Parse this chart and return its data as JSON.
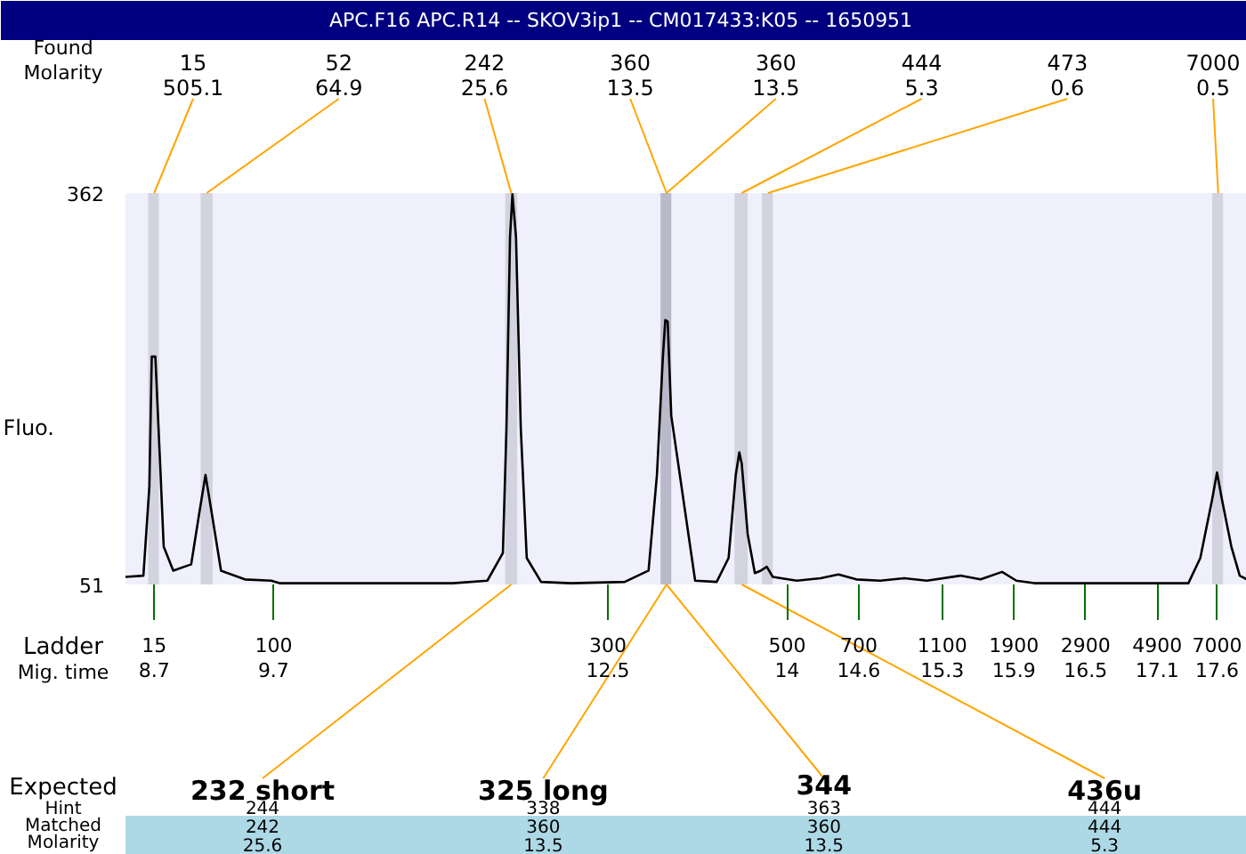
{
  "chart_data": {
    "type": "line",
    "title": "APC.F16  APC.R14 -- SKOV3ip1 -- CM017433:K05 -- 1650951",
    "ylabel": "Fluo.",
    "x": [
      8.46,
      8.61,
      8.66,
      8.68,
      8.71,
      8.75,
      8.78,
      8.86,
      9.01,
      9.08,
      9.13,
      9.18,
      9.26,
      9.46,
      9.68,
      9.75,
      11.2,
      11.49,
      11.62,
      11.65,
      11.68,
      11.7,
      11.73,
      11.77,
      11.82,
      11.94,
      12.19,
      12.64,
      12.84,
      12.91,
      12.96,
      12.98,
      13.0,
      13.03,
      13.23,
      13.41,
      13.51,
      13.57,
      13.6,
      13.62,
      13.67,
      13.73,
      13.78,
      13.83,
      13.88,
      14.08,
      14.28,
      14.43,
      14.58,
      14.78,
      14.98,
      15.17,
      15.45,
      15.62,
      15.8,
      15.92,
      16.07,
      17.36,
      17.46,
      17.56,
      17.6,
      17.64,
      17.72,
      17.79,
      17.85
    ],
    "series": [
      {
        "color": "#000000",
        "values": [
          57,
          58,
          129,
          232,
          232,
          147,
          81,
          62,
          67,
          109,
          138,
          109,
          62,
          55,
          54,
          52,
          52,
          54,
          76,
          175,
          327,
          361,
          327,
          175,
          72,
          53,
          52,
          53,
          62,
          138,
          232,
          261,
          260,
          185,
          54,
          53,
          72,
          138,
          156,
          147,
          91,
          60,
          62,
          65,
          57,
          54,
          56,
          59,
          55,
          54,
          56,
          54,
          58,
          55,
          61,
          54,
          52,
          52,
          72,
          119,
          140,
          119,
          81,
          58,
          55
        ]
      }
    ],
    "xlim": [
      8.46,
      17.85
    ],
    "ylim": [
      51,
      362
    ],
    "yticks": [
      51,
      362
    ],
    "xticks": [
      8.7,
      9.7,
      12.5,
      14,
      14.6,
      15.3,
      15.9,
      16.5,
      17.1,
      17.6
    ],
    "bands": [
      {
        "axis": "x",
        "from": 8.65,
        "to": 8.74,
        "color": "#d3d3df"
      },
      {
        "axis": "x",
        "from": 9.09,
        "to": 9.19,
        "color": "#d3d3df"
      },
      {
        "axis": "x",
        "from": 11.64,
        "to": 11.74,
        "color": "#d3d3df"
      },
      {
        "axis": "x",
        "from": 12.94,
        "to": 13.03,
        "color": "#b9b9c9"
      },
      {
        "axis": "x",
        "from": 13.56,
        "to": 13.67,
        "color": "#d3d3df"
      },
      {
        "axis": "x",
        "from": 13.79,
        "to": 13.88,
        "color": "#d3d3df"
      },
      {
        "axis": "x",
        "from": 17.56,
        "to": 17.65,
        "color": "#d3d3df"
      }
    ],
    "annotations": [
      "Found",
      "Molarity",
      "Ladder",
      "Mig. time",
      "Expected",
      "Hint",
      "Matched",
      "Molarity",
      {
        "text": "15\n505.1",
        "x": 8.7,
        "y": 362
      },
      {
        "text": "52\n64.9",
        "x": 9.14,
        "y": 362
      },
      {
        "text": "242\n25.6",
        "x": 11.69,
        "y": 362
      },
      {
        "text": "360\n13.5",
        "x": 12.99,
        "y": 362
      },
      {
        "text": "360\n13.5",
        "x": 12.99,
        "y": 362
      },
      {
        "text": "444\n5.3",
        "x": 13.62,
        "y": 362
      },
      {
        "text": "473\n0.6",
        "x": 13.84,
        "y": 362
      },
      {
        "text": "7000\n0.5",
        "x": 17.61,
        "y": 362
      },
      {
        "text": "232 short",
        "x": 11.69,
        "y": 51
      },
      {
        "text": "325 long",
        "x": 12.99,
        "y": 51
      },
      {
        "text": "344",
        "x": 12.99,
        "y": 51
      },
      {
        "text": "436u",
        "x": 13.62,
        "y": 51
      },
      "15",
      "100",
      "300",
      "500",
      "700",
      "1100",
      "1900",
      "2900",
      "4900",
      "7000",
      "244\n242\n25.6",
      "338\n360\n13.5",
      "363\n360\n13.5",
      "444\n444\n5.3"
    ]
  }
}
